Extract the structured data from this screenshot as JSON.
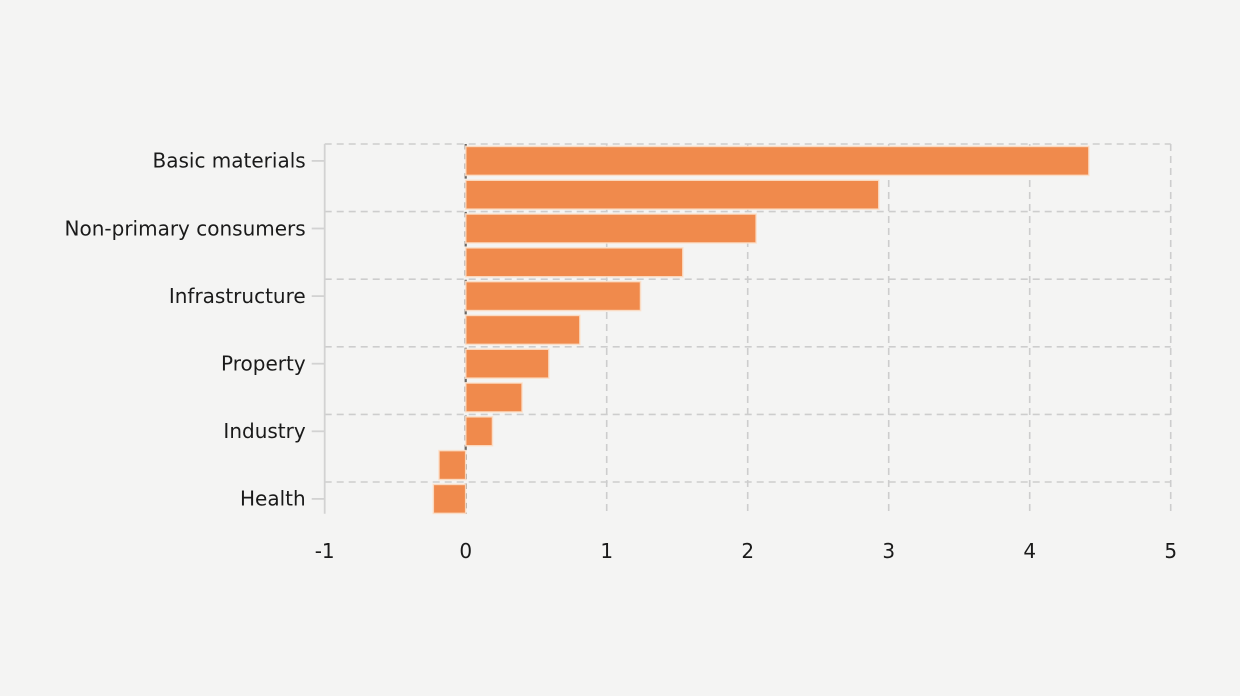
{
  "chart_data": {
    "type": "bar",
    "orientation": "horizontal",
    "title": "",
    "xlabel": "",
    "ylabel": "",
    "xlim": [
      -1,
      5
    ],
    "xticks": [
      "-1",
      "0",
      "1",
      "2",
      "3",
      "4",
      "5"
    ],
    "grid": "dashed",
    "legend": "none",
    "colors": {
      "background": "#f4f4f3",
      "bar_fill": "#f08a4c",
      "bar_edge": "#fbe2cd",
      "grid_line": "#cdcdcd",
      "axis_spine": "#d2d2d2",
      "zero_line": "#6b6762",
      "text": "#1a1a1a"
    },
    "bars": [
      {
        "label": "Basic materials",
        "value": 4.42
      },
      {
        "label": "",
        "value": 2.93
      },
      {
        "label": "Non-primary consumers",
        "value": 2.06
      },
      {
        "label": "",
        "value": 1.54
      },
      {
        "label": "Infrastructure",
        "value": 1.24
      },
      {
        "label": "",
        "value": 0.81
      },
      {
        "label": "Property",
        "value": 0.59
      },
      {
        "label": "",
        "value": 0.4
      },
      {
        "label": "Industry",
        "value": 0.19
      },
      {
        "label": "",
        "value": -0.19
      },
      {
        "label": "Health",
        "value": -0.23
      }
    ]
  }
}
